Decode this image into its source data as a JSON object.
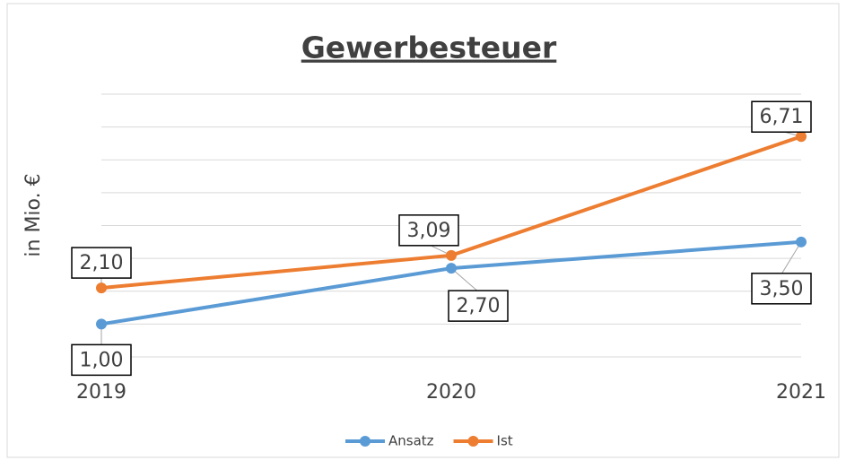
{
  "chart_data": {
    "type": "line",
    "title": "Gewerbesteuer",
    "y_label": "in Mio. €",
    "categories": [
      "2019",
      "2020",
      "2021"
    ],
    "ylim": [
      0,
      8
    ],
    "yticks": [
      0,
      1,
      2,
      3,
      4,
      5,
      6,
      7,
      8
    ],
    "grid": true,
    "legend": "bottom",
    "series": [
      {
        "name": "Ansatz",
        "color": "#5b9bd5",
        "values": [
          1.0,
          2.7,
          3.5
        ],
        "value_labels": [
          "1,00",
          "2,70",
          "3,50"
        ]
      },
      {
        "name": "Ist",
        "color": "#ed7d31",
        "values": [
          2.1,
          3.09,
          6.71
        ],
        "value_labels": [
          "2,10",
          "3,09",
          "6,71"
        ]
      }
    ]
  }
}
